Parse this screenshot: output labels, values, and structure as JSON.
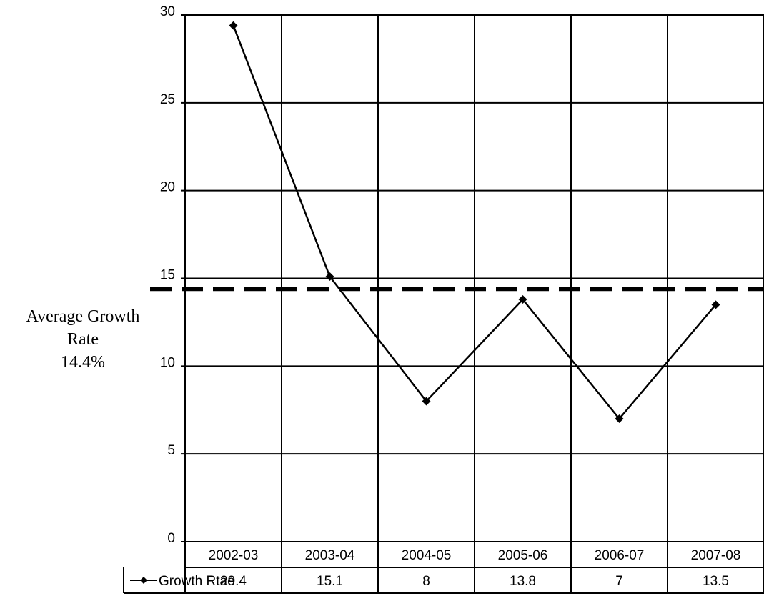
{
  "chart_data": {
    "type": "line",
    "categories": [
      "2002-03",
      "2003-04",
      "2004-05",
      "2005-06",
      "2006-07",
      "2007-08"
    ],
    "series": [
      {
        "name": "Growth Rtae",
        "values": [
          29.4,
          15.1,
          8,
          13.8,
          7,
          13.5
        ],
        "color": "#000000",
        "marker": "diamond"
      }
    ],
    "ylim": [
      0,
      30
    ],
    "yticks": [
      0,
      5,
      10,
      15,
      20,
      25,
      30
    ],
    "grid": true,
    "data_table": true,
    "reference_line": {
      "value": 14.4,
      "style": "dashed",
      "color": "#000000",
      "label_lines": [
        "Average Growth",
        "Rate",
        "14.4%"
      ]
    }
  }
}
